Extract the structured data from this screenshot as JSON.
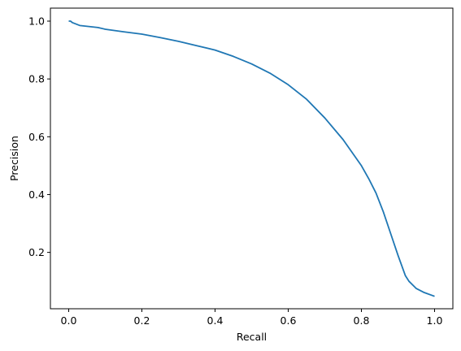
{
  "chart_data": {
    "type": "line",
    "title": "",
    "xlabel": "Recall",
    "ylabel": "Precision",
    "xlim": [
      -0.05,
      1.05
    ],
    "ylim": [
      0.005,
      1.045
    ],
    "xticks": [
      0.0,
      0.2,
      0.4,
      0.6,
      0.8,
      1.0
    ],
    "xtick_labels": [
      "0.0",
      "0.2",
      "0.4",
      "0.6",
      "0.8",
      "1.0"
    ],
    "yticks": [
      0.2,
      0.4,
      0.6,
      0.8,
      1.0
    ],
    "ytick_labels": [
      "0.2",
      "0.4",
      "0.6",
      "0.8",
      "1.0"
    ],
    "grid": false,
    "series": [
      {
        "color": "#1f77b4",
        "x": [
          0.0,
          0.005,
          0.01,
          0.02,
          0.03,
          0.05,
          0.08,
          0.1,
          0.15,
          0.2,
          0.25,
          0.3,
          0.35,
          0.4,
          0.45,
          0.5,
          0.55,
          0.6,
          0.65,
          0.7,
          0.75,
          0.8,
          0.82,
          0.84,
          0.86,
          0.88,
          0.9,
          0.92,
          0.93,
          0.95,
          0.97,
          1.0
        ],
        "y": [
          1.0,
          1.0,
          0.995,
          0.99,
          0.985,
          0.982,
          0.978,
          0.972,
          0.963,
          0.955,
          0.943,
          0.93,
          0.915,
          0.9,
          0.878,
          0.852,
          0.82,
          0.78,
          0.73,
          0.665,
          0.59,
          0.5,
          0.455,
          0.405,
          0.34,
          0.265,
          0.19,
          0.12,
          0.1,
          0.075,
          0.062,
          0.048
        ]
      }
    ]
  }
}
